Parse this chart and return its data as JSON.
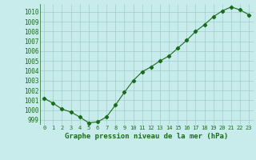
{
  "x": [
    0,
    1,
    2,
    3,
    4,
    5,
    6,
    7,
    8,
    9,
    10,
    11,
    12,
    13,
    14,
    15,
    16,
    17,
    18,
    19,
    20,
    21,
    22,
    23
  ],
  "y": [
    1001.2,
    1000.7,
    1000.1,
    999.8,
    999.3,
    998.7,
    998.8,
    999.3,
    1000.5,
    1001.8,
    1003.0,
    1003.9,
    1004.4,
    1005.0,
    1005.5,
    1006.3,
    1007.1,
    1008.0,
    1008.7,
    1009.5,
    1010.1,
    1010.5,
    1010.2,
    1009.7
  ],
  "line_color": "#1a6b1a",
  "marker": "D",
  "marker_size": 2.2,
  "bg_color": "#c8ecec",
  "grid_color": "#a0cccc",
  "xlabel": "Graphe pression niveau de la mer (hPa)",
  "xlabel_color": "#1a6b1a",
  "xlabel_fontsize": 6.5,
  "ylabel_fontsize": 5.5,
  "tick_fontsize": 5.0,
  "ylim": [
    998.5,
    1010.8
  ],
  "yticks": [
    999,
    1000,
    1001,
    1002,
    1003,
    1004,
    1005,
    1006,
    1007,
    1008,
    1009,
    1010
  ],
  "xlim": [
    -0.5,
    23.5
  ]
}
